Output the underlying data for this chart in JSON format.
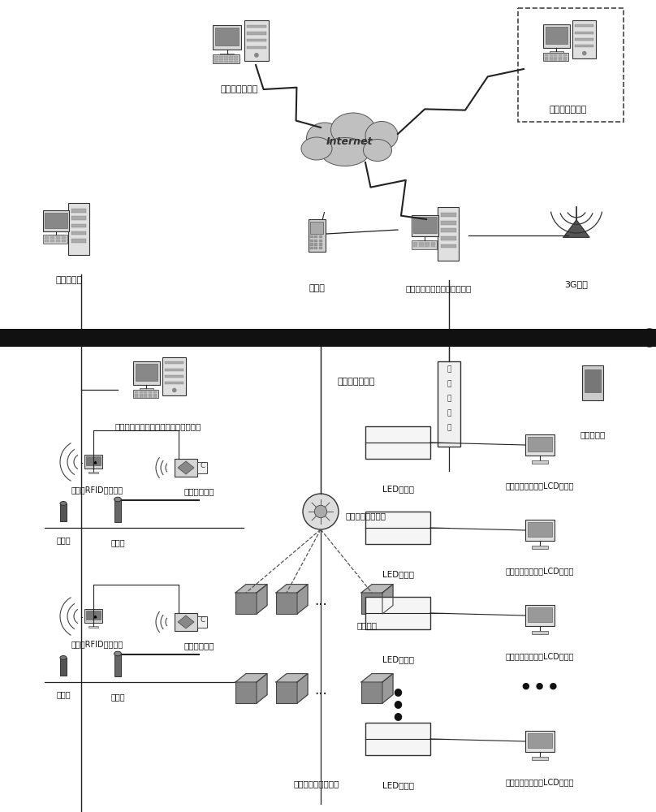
{
  "bg_color": "#ffffff",
  "thick_bar_color": "#111111",
  "line_color": "#222222",
  "font_size": 7.5,
  "labels": {
    "remote_computer": "远程维护计算机",
    "smart_traffic": "智能交通计算机",
    "sub_computer": "分控计算机",
    "sms_modem": "短信猖",
    "main_computer": "主控计算机（数据库服务器）",
    "g3_comm": "3G通讯",
    "parking_mgmt": "停车场管理计算机（带车牌自动识别）",
    "multi_hop_router": "多跳线无线路由",
    "comm_converter": "通讯转换器",
    "car_search": "寻车触摸屏",
    "license_sys": "车牌识别系统",
    "rfid_id": "长距高RFID身份识别",
    "controller": "控制器",
    "barrier": "挡车器",
    "wireless_router_node": "无线路由传感节点",
    "wireless_connect": "无线连接",
    "sensors": "无线传感车位检测器",
    "led_display": "LED显示屏",
    "lcd_display": "带播放器的一体化LCD显示器"
  },
  "comm_text": [
    "通",
    "讯",
    "转",
    "换",
    "器"
  ]
}
